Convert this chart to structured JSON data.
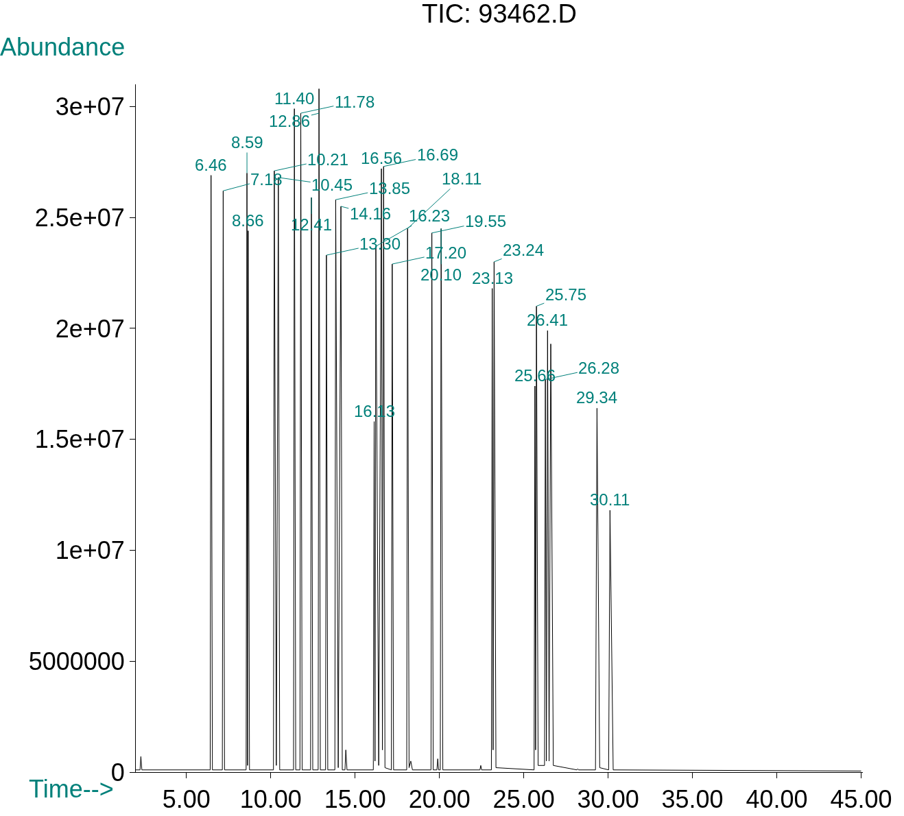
{
  "chart_data": {
    "type": "line",
    "title": "TIC: 93462.D",
    "xlabel": "Time-->",
    "ylabel": "Abundance",
    "xlim": [
      2,
      45.1
    ],
    "xticks": [
      {
        "value": 5,
        "label": "5.00"
      },
      {
        "value": 10,
        "label": "10.00"
      },
      {
        "value": 15,
        "label": "15.00"
      },
      {
        "value": 20,
        "label": "20.00"
      },
      {
        "value": 25,
        "label": "25.00"
      },
      {
        "value": 30,
        "label": "30.00"
      },
      {
        "value": 35,
        "label": "35.00"
      },
      {
        "value": 40,
        "label": "40.00"
      },
      {
        "value": 45,
        "label": "45.00"
      }
    ],
    "ylim": [
      0,
      31000000
    ],
    "yticks": [
      0,
      5000000,
      {
        "value": 10000000,
        "label": "1e+07"
      },
      {
        "value": 15000000,
        "label": "1.5e+07"
      },
      {
        "value": 20000000,
        "label": "2e+07"
      },
      {
        "value": 25000000,
        "label": "2.5e+07"
      },
      {
        "value": 30000000,
        "label": "3e+07"
      }
    ],
    "grid": false,
    "marker": "none",
    "line_style": "solid",
    "series": [
      {
        "color": "#000000",
        "x": [
          2.0,
          2.25,
          2.3,
          2.36,
          6.41,
          6.46,
          6.54,
          7.13,
          7.18,
          7.26,
          8.54,
          8.59,
          8.625,
          8.66,
          8.74,
          10.16,
          10.21,
          10.33,
          10.45,
          10.53,
          11.35,
          11.4,
          11.48,
          11.73,
          11.78,
          11.86,
          12.36,
          12.41,
          12.49,
          12.81,
          12.86,
          12.94,
          13.25,
          13.3,
          13.38,
          13.8,
          13.85,
          14.0,
          14.16,
          14.24,
          14.4,
          14.45,
          14.52,
          16.08,
          16.13,
          16.18,
          16.23,
          16.4,
          16.56,
          16.62,
          16.69,
          16.77,
          17.15,
          17.2,
          17.28,
          18.06,
          18.11,
          18.2,
          18.3,
          18.4,
          19.5,
          19.55,
          19.63,
          19.85,
          19.9,
          19.95,
          20.05,
          20.1,
          20.2,
          22.4,
          22.45,
          22.5,
          23.08,
          23.13,
          23.18,
          23.24,
          23.35,
          25.61,
          25.66,
          25.7,
          25.75,
          25.85,
          26.23,
          26.28,
          26.34,
          26.41,
          26.5,
          26.6,
          26.75,
          28.15,
          28.2,
          28.25,
          29.25,
          29.34,
          29.5,
          30.03,
          30.11,
          30.3,
          45.0
        ],
        "values": [
          100000,
          100000,
          700000,
          100000,
          100000,
          26900000,
          100000,
          100000,
          26200000,
          100000,
          100000,
          27000000,
          300000,
          24400000,
          100000,
          100000,
          27100000,
          300000,
          26800000,
          100000,
          100000,
          29900000,
          100000,
          100000,
          29700000,
          100000,
          100000,
          25900000,
          100000,
          100000,
          30800000,
          100000,
          100000,
          23300000,
          100000,
          100000,
          25800000,
          200000,
          25500000,
          100000,
          100000,
          1000000,
          100000,
          100000,
          15800000,
          500000,
          23700000,
          300000,
          27200000,
          1000000,
          27300000,
          200000,
          100000,
          22900000,
          100000,
          100000,
          24500000,
          200000,
          500000,
          100000,
          100000,
          24300000,
          100000,
          100000,
          600000,
          100000,
          100000,
          24500000,
          100000,
          100000,
          300000,
          100000,
          100000,
          21800000,
          1000000,
          23000000,
          200000,
          100000,
          17400000,
          1000000,
          21000000,
          300000,
          300000,
          17700000,
          500000,
          19900000,
          500000,
          19300000,
          300000,
          100000,
          150000,
          100000,
          100000,
          16400000,
          200000,
          100000,
          11800000,
          100000,
          50000
        ]
      }
    ],
    "annotations": [
      {
        "text": "6.46",
        "x": 6.46,
        "y": 26900000
      },
      {
        "text": "7.18",
        "x": 7.18,
        "y": 26200000
      },
      {
        "text": "8.59",
        "x": 8.59,
        "y": 27000000
      },
      {
        "text": "8.66",
        "x": 8.66,
        "y": 24400000
      },
      {
        "text": "10.21",
        "x": 10.21,
        "y": 27100000
      },
      {
        "text": "10.45",
        "x": 10.45,
        "y": 26800000
      },
      {
        "text": "11.40",
        "x": 11.4,
        "y": 29900000
      },
      {
        "text": "11.78",
        "x": 11.78,
        "y": 29700000
      },
      {
        "text": "12.41",
        "x": 12.41,
        "y": 25900000
      },
      {
        "text": "12.86",
        "x": 12.86,
        "y": 29700000
      },
      {
        "text": "13.30",
        "x": 13.3,
        "y": 23300000
      },
      {
        "text": "13.85",
        "x": 13.85,
        "y": 25800000
      },
      {
        "text": "14.16",
        "x": 14.16,
        "y": 25500000
      },
      {
        "text": "16.13",
        "x": 16.13,
        "y": 15800000
      },
      {
        "text": "16.23",
        "x": 16.23,
        "y": 23700000
      },
      {
        "text": "16.56",
        "x": 16.56,
        "y": 27200000
      },
      {
        "text": "16.69",
        "x": 16.69,
        "y": 27300000
      },
      {
        "text": "17.20",
        "x": 17.2,
        "y": 22900000
      },
      {
        "text": "18.11",
        "x": 18.11,
        "y": 24500000
      },
      {
        "text": "19.55",
        "x": 19.55,
        "y": 24300000
      },
      {
        "text": "20.10",
        "x": 20.1,
        "y": 24500000
      },
      {
        "text": "23.13",
        "x": 23.13,
        "y": 21800000
      },
      {
        "text": "23.24",
        "x": 23.24,
        "y": 23000000
      },
      {
        "text": "25.66",
        "x": 25.66,
        "y": 17400000
      },
      {
        "text": "25.75",
        "x": 25.75,
        "y": 21000000
      },
      {
        "text": "26.28",
        "x": 26.28,
        "y": 17700000
      },
      {
        "text": "26.41",
        "x": 26.41,
        "y": 19900000
      },
      {
        "text": "29.34",
        "x": 29.34,
        "y": 16400000
      },
      {
        "text": "30.11",
        "x": 30.11,
        "y": 11800000
      }
    ]
  }
}
